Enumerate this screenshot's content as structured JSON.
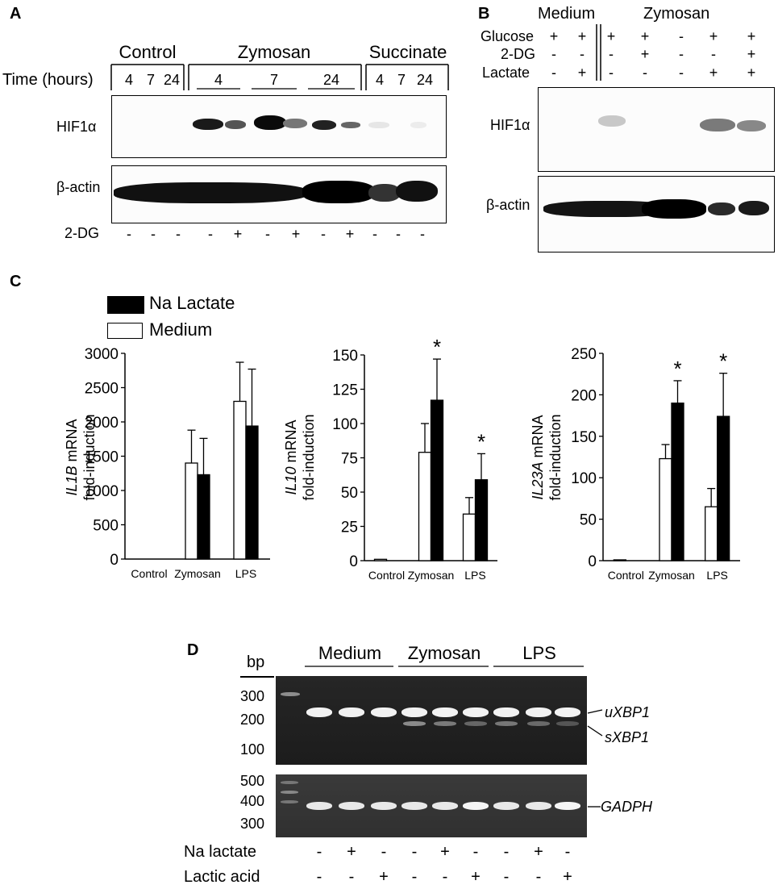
{
  "panels": {
    "a": "A",
    "b": "B",
    "c": "C",
    "d": "D"
  },
  "panelA": {
    "groups": [
      "Control",
      "Zymosan",
      "Succinate"
    ],
    "time_label": "Time (hours)",
    "control_times": [
      "4",
      "7",
      "24"
    ],
    "zymosan_times": [
      "4",
      "7",
      "24"
    ],
    "succinate_times": [
      "4",
      "7",
      "24"
    ],
    "hif_label": "HIF1α",
    "actin_label": "β-actin",
    "dg_label": "2-DG",
    "dg_values": [
      "-",
      "-",
      "-",
      "-",
      "+",
      "-",
      "+",
      "-",
      "+",
      "-",
      "-",
      "-"
    ]
  },
  "panelB": {
    "medium": "Medium",
    "zymosan": "Zymosan",
    "rows": [
      {
        "label": "Glucose",
        "values": [
          "+",
          "+",
          "+",
          "+",
          "-",
          "+",
          "+"
        ]
      },
      {
        "label": "2-DG",
        "values": [
          "-",
          "-",
          "-",
          "+",
          "-",
          "-",
          "+"
        ]
      },
      {
        "label": "Lactate",
        "values": [
          "-",
          "+",
          "-",
          "-",
          "-",
          "+",
          "+"
        ]
      }
    ],
    "hif_label": "HIF1α",
    "actin_label": "β-actin"
  },
  "panelC": {
    "legend": {
      "lactate": "Na Lactate",
      "medium": "Medium"
    },
    "xlabels": [
      "Control",
      "Zymosan",
      "LPS"
    ],
    "ylabels": {
      "il1b": {
        "gene": "IL1B",
        "rest": " mRNA",
        "line2": "fold-induction"
      },
      "il10": {
        "gene": "IL10",
        "rest": " mRNA",
        "line2": "fold-induction"
      },
      "il23a": {
        "gene": "IL23A",
        "rest": " mRNA",
        "line2": "fold-induction"
      }
    },
    "star": "*"
  },
  "chart_data": [
    {
      "type": "bar",
      "categories": [
        "Control",
        "Zymosan",
        "LPS"
      ],
      "ylabel": "IL1B mRNA fold-induction",
      "ylim": [
        0,
        3000
      ],
      "yticks": [
        "0",
        "500",
        "1000",
        "1500",
        "2000",
        "2500",
        "3000"
      ],
      "series": [
        {
          "name": "Medium",
          "values": [
            0,
            1400,
            2300
          ],
          "errors": [
            0,
            480,
            570
          ]
        },
        {
          "name": "Na Lactate",
          "values": [
            0,
            1230,
            1940
          ],
          "errors": [
            0,
            530,
            830
          ]
        }
      ],
      "significant": [
        false,
        false,
        false
      ]
    },
    {
      "type": "bar",
      "categories": [
        "Control",
        "Zymosan",
        "LPS"
      ],
      "ylabel": "IL10 mRNA fold-induction",
      "ylim": [
        0,
        150
      ],
      "yticks": [
        "0",
        "25",
        "50",
        "75",
        "100",
        "125",
        "150"
      ],
      "series": [
        {
          "name": "Medium",
          "values": [
            1,
            79,
            34
          ],
          "errors": [
            0,
            21,
            12
          ]
        },
        {
          "name": "Na Lactate",
          "values": [
            0,
            117,
            59
          ],
          "errors": [
            0,
            30,
            19
          ]
        }
      ],
      "significant": [
        false,
        true,
        true
      ]
    },
    {
      "type": "bar",
      "categories": [
        "Control",
        "Zymosan",
        "LPS"
      ],
      "ylabel": "IL23A mRNA fold-induction",
      "ylim": [
        0,
        250
      ],
      "yticks": [
        "0",
        "50",
        "100",
        "150",
        "200",
        "250"
      ],
      "series": [
        {
          "name": "Medium",
          "values": [
            1,
            123,
            65
          ],
          "errors": [
            0,
            17,
            22
          ]
        },
        {
          "name": "Na Lactate",
          "values": [
            0,
            190,
            174
          ],
          "errors": [
            0,
            27,
            52
          ]
        }
      ],
      "significant": [
        false,
        true,
        true
      ]
    }
  ],
  "panelD": {
    "bp": "bp",
    "groups": [
      "Medium",
      "Zymosan",
      "LPS"
    ],
    "ladder_top": [
      "300",
      "200",
      "100"
    ],
    "ladder_bottom": [
      "500",
      "400",
      "300"
    ],
    "uxbp1": "uXBP1",
    "sxbp1": "sXBP1",
    "gapdh": "GADPH",
    "na_lactate_label": "Na lactate",
    "lactic_acid_label": "Lactic acid",
    "na_lactate": [
      "-",
      "+",
      "-",
      "-",
      "+",
      "-",
      "-",
      "+",
      "-"
    ],
    "lactic_acid": [
      "-",
      "-",
      "+",
      "-",
      "-",
      "+",
      "-",
      "-",
      "+"
    ]
  }
}
